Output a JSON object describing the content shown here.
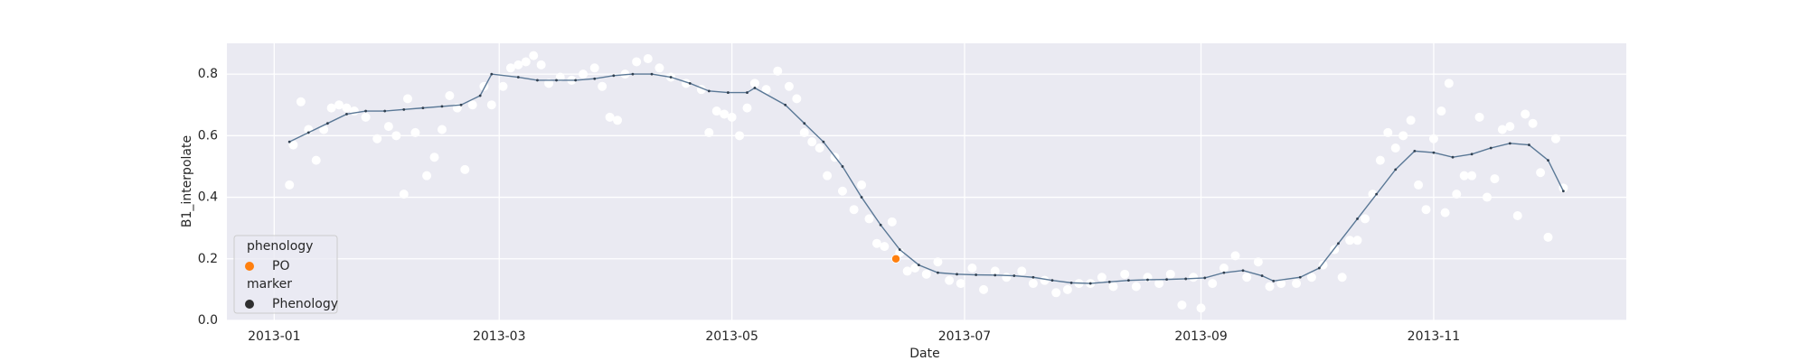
{
  "chart_data": {
    "type": "scatter",
    "x_label": "Date",
    "y_label": "B1_interpolate",
    "xlim": [
      -12.4,
      354.5
    ],
    "ylim": [
      0,
      0.9
    ],
    "xticks": [
      {
        "value": 0,
        "label": "2013-01"
      },
      {
        "value": 59,
        "label": "2013-03"
      },
      {
        "value": 120,
        "label": "2013-05"
      },
      {
        "value": 181,
        "label": "2013-07"
      },
      {
        "value": 243,
        "label": "2013-09"
      },
      {
        "value": 304,
        "label": "2013-11"
      }
    ],
    "yticks": [
      {
        "value": 0,
        "label": "0.0"
      },
      0.2,
      0.4,
      0.6,
      0.8
    ],
    "grid": true,
    "background": "#eaeaf2",
    "series": [
      {
        "type": "scatter",
        "color": "#ffffff",
        "x": [
          4,
          5,
          7,
          9,
          11,
          13,
          15,
          17,
          19,
          21,
          24,
          27,
          30,
          32,
          34,
          35,
          37,
          40,
          42,
          44,
          46,
          48,
          50,
          52,
          55,
          57,
          60,
          62,
          64,
          66,
          68,
          70,
          72,
          75,
          78,
          81,
          84,
          86,
          88,
          90,
          92,
          95,
          98,
          101,
          104,
          108,
          112,
          114,
          116,
          118,
          120,
          122,
          124,
          126,
          129,
          132,
          135,
          137,
          139,
          141,
          143,
          145,
          147,
          149,
          152,
          154,
          156,
          158,
          160,
          162,
          164,
          166,
          168,
          171,
          174,
          177,
          180,
          183,
          186,
          189,
          192,
          196,
          199,
          202,
          205,
          208,
          211,
          214,
          217,
          220,
          223,
          226,
          229,
          232,
          235,
          238,
          241,
          243,
          246,
          249,
          252,
          255,
          258,
          261,
          264,
          268,
          272,
          275,
          278,
          280,
          282,
          284,
          286,
          288,
          290,
          292,
          294,
          296,
          298,
          300,
          302,
          304,
          306,
          307,
          308,
          310,
          312,
          314,
          316,
          318,
          320,
          322,
          324,
          326,
          328,
          330,
          332,
          334,
          336,
          338
        ],
        "values": [
          0.44,
          0.57,
          0.71,
          0.62,
          0.52,
          0.62,
          0.69,
          0.7,
          0.69,
          0.68,
          0.66,
          0.59,
          0.63,
          0.6,
          0.41,
          0.72,
          0.61,
          0.47,
          0.53,
          0.62,
          0.73,
          0.69,
          0.49,
          0.7,
          0.76,
          0.7,
          0.76,
          0.82,
          0.83,
          0.84,
          0.86,
          0.83,
          0.77,
          0.79,
          0.78,
          0.8,
          0.82,
          0.76,
          0.66,
          0.65,
          0.8,
          0.84,
          0.85,
          0.82,
          0.79,
          0.77,
          0.75,
          0.61,
          0.68,
          0.67,
          0.66,
          0.6,
          0.69,
          0.77,
          0.75,
          0.81,
          0.76,
          0.72,
          0.61,
          0.58,
          0.56,
          0.47,
          0.53,
          0.42,
          0.36,
          0.44,
          0.33,
          0.25,
          0.24,
          0.32,
          0.22,
          0.16,
          0.17,
          0.15,
          0.19,
          0.13,
          0.12,
          0.17,
          0.1,
          0.16,
          0.14,
          0.16,
          0.12,
          0.13,
          0.09,
          0.1,
          0.12,
          0.12,
          0.14,
          0.11,
          0.15,
          0.11,
          0.14,
          0.12,
          0.15,
          0.05,
          0.14,
          0.04,
          0.12,
          0.17,
          0.21,
          0.14,
          0.19,
          0.11,
          0.12,
          0.12,
          0.14,
          0.18,
          0.23,
          0.14,
          0.26,
          0.26,
          0.33,
          0.41,
          0.52,
          0.61,
          0.56,
          0.6,
          0.65,
          0.44,
          0.36,
          0.59,
          0.68,
          0.35,
          0.77,
          0.41,
          0.47,
          0.47,
          0.66,
          0.4,
          0.46,
          0.62,
          0.63,
          0.34,
          0.67,
          0.64,
          0.48,
          0.27,
          0.59,
          0.43
        ]
      },
      {
        "type": "line",
        "color": "#5a7896",
        "marker_color": "#2f3f50",
        "x": [
          4,
          9,
          14,
          19,
          24,
          29,
          34,
          39,
          44,
          49,
          54,
          57,
          64,
          69,
          74,
          79,
          84,
          89,
          94,
          99,
          104,
          109,
          114,
          119,
          124,
          126,
          134,
          139,
          144,
          149,
          154,
          159,
          164,
          169,
          174,
          179,
          184,
          189,
          194,
          199,
          204,
          209,
          214,
          219,
          224,
          229,
          234,
          239,
          244,
          249,
          254,
          259,
          262,
          269,
          274,
          279,
          284,
          289,
          294,
          299,
          304,
          309,
          314,
          319,
          324,
          329,
          334,
          338
        ],
        "values": [
          0.58,
          0.61,
          0.64,
          0.67,
          0.68,
          0.68,
          0.685,
          0.69,
          0.695,
          0.7,
          0.73,
          0.8,
          0.79,
          0.78,
          0.78,
          0.78,
          0.785,
          0.795,
          0.8,
          0.8,
          0.79,
          0.77,
          0.745,
          0.74,
          0.74,
          0.755,
          0.7,
          0.64,
          0.58,
          0.5,
          0.4,
          0.31,
          0.23,
          0.18,
          0.155,
          0.15,
          0.148,
          0.147,
          0.145,
          0.14,
          0.13,
          0.122,
          0.12,
          0.125,
          0.13,
          0.132,
          0.133,
          0.135,
          0.138,
          0.155,
          0.162,
          0.145,
          0.128,
          0.14,
          0.17,
          0.25,
          0.33,
          0.41,
          0.49,
          0.55,
          0.545,
          0.53,
          0.54,
          0.56,
          0.575,
          0.57,
          0.52,
          0.42
        ]
      },
      {
        "type": "scatter",
        "name": "PO",
        "color": "#ff7f0e",
        "x": [
          163
        ],
        "values": [
          0.2
        ]
      }
    ],
    "legend": {
      "loc": "lower left",
      "hue_title": "phenology",
      "style_title": "marker",
      "style_entry": "Phenology",
      "style_color": "#2f2f2f"
    }
  }
}
